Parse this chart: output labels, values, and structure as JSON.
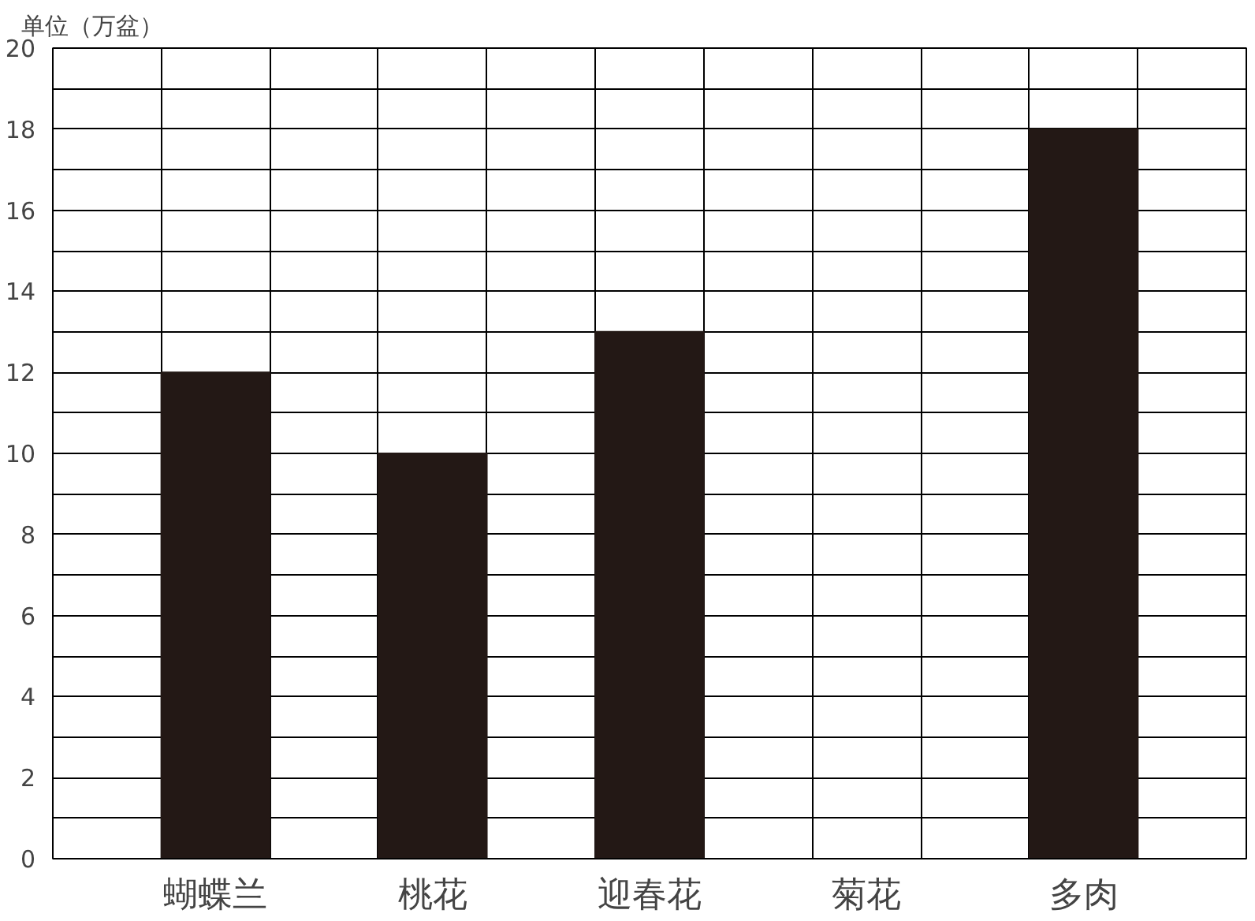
{
  "chart_data": {
    "type": "bar",
    "ylabel": "单位（万盆）",
    "categories": [
      "蝴蝶兰",
      "桃花",
      "迎春花",
      "菊花",
      "多肉"
    ],
    "values": [
      12,
      10,
      13,
      null,
      18
    ],
    "color": "#231815",
    "ylim": [
      0,
      20
    ],
    "yticks": [
      0,
      {
        "value": 1,
        "label": null
      },
      2,
      {
        "value": 3,
        "label": null
      },
      4,
      {
        "value": 5,
        "label": null
      },
      6,
      {
        "value": 7,
        "label": null
      },
      8,
      {
        "value": 9,
        "label": null
      },
      10,
      {
        "value": 11,
        "label": null
      },
      12,
      {
        "value": 13,
        "label": null
      },
      14,
      {
        "value": 15,
        "label": null
      },
      16,
      {
        "value": 17,
        "label": null
      },
      18,
      {
        "value": 19,
        "label": null
      },
      20
    ],
    "grid": true
  }
}
